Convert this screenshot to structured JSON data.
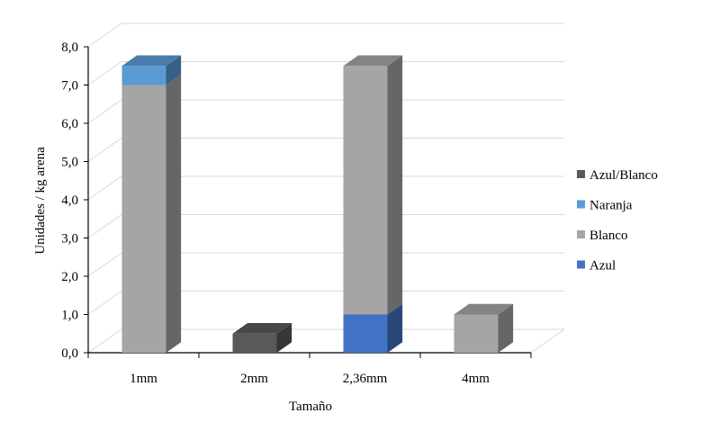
{
  "chart_data": {
    "type": "bar",
    "stacked": true,
    "three_d": true,
    "categories": [
      "1mm",
      "2mm",
      "2,36mm",
      "4mm"
    ],
    "series": [
      {
        "name": "Azul",
        "color": "#4472C4",
        "values": [
          0,
          0,
          1.0,
          0
        ]
      },
      {
        "name": "Blanco",
        "color": "#A5A5A5",
        "values": [
          7.0,
          0,
          6.5,
          1.0
        ]
      },
      {
        "name": "Naranja",
        "color": "#5B9BD5",
        "values": [
          0.5,
          0,
          0,
          0
        ]
      },
      {
        "name": "Azul/Blanco",
        "color": "#595959",
        "values": [
          0,
          0.5,
          0,
          0
        ]
      }
    ],
    "legend_order": [
      "Azul/Blanco",
      "Naranja",
      "Blanco",
      "Azul"
    ],
    "legend_position": "right",
    "xlabel": "Tamaño",
    "ylabel": "Unidades / kg arena",
    "ylim": [
      0,
      8
    ],
    "yticks": [
      "0,0",
      "1,0",
      "2,0",
      "3,0",
      "4,0",
      "5,0",
      "6,0",
      "7,0",
      "8,0"
    ],
    "grid": true
  }
}
